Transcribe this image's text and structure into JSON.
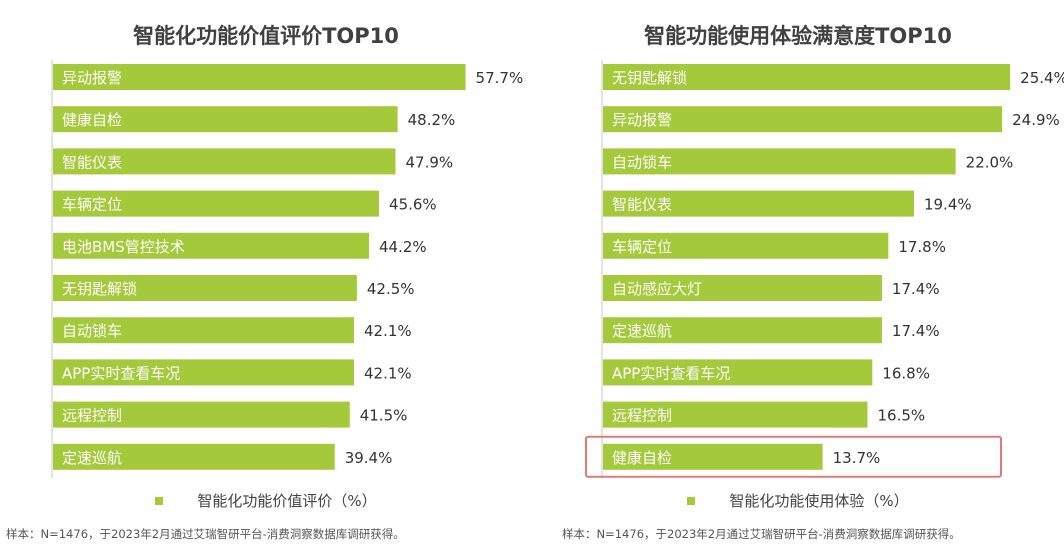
{
  "colors": {
    "bar": "#a4c93a",
    "bar_label": "#ffffff",
    "value_label": "#333333",
    "axis": "#c8c8c8",
    "highlight": "#e07a7a"
  },
  "chart_data": [
    {
      "type": "bar",
      "orientation": "horizontal",
      "title": "智能化功能价值评价TOP10",
      "categories": [
        "异动报警",
        "健康自检",
        "智能仪表",
        "车辆定位",
        "电池BMS管控技术",
        "无钥匙解锁",
        "自动锁车",
        "APP实时查看车况",
        "远程控制",
        "定速巡航"
      ],
      "values": [
        57.7,
        48.2,
        47.9,
        45.6,
        44.2,
        42.5,
        42.1,
        42.1,
        41.5,
        39.4
      ],
      "value_labels": [
        "57.7%",
        "48.2%",
        "47.9%",
        "45.6%",
        "44.2%",
        "42.5%",
        "42.1%",
        "42.1%",
        "41.5%",
        "39.4%"
      ],
      "series": [
        {
          "name": "智能化功能价值评价（%）"
        }
      ],
      "xlim": [
        0,
        60
      ]
    },
    {
      "type": "bar",
      "orientation": "horizontal",
      "title": "智能功能使用体验满意度TOP10",
      "categories": [
        "无钥匙解锁",
        "异动报警",
        "自动锁车",
        "智能仪表",
        "车辆定位",
        "自动感应大灯",
        "定速巡航",
        "APP实时查看车况",
        "远程控制",
        "健康自检"
      ],
      "values": [
        25.4,
        24.9,
        22.0,
        19.4,
        17.8,
        17.4,
        17.4,
        16.8,
        16.5,
        13.7
      ],
      "value_labels": [
        "25.4%",
        "24.9%",
        "22.0%",
        "19.4%",
        "17.8%",
        "17.4%",
        "17.4%",
        "16.8%",
        "16.5%",
        "13.7%"
      ],
      "series": [
        {
          "name": "智能化功能使用体验（%）"
        }
      ],
      "highlighted_category": "健康自检",
      "xlim": [
        0,
        27
      ]
    }
  ],
  "footnotes": {
    "left": "样本：N=1476，于2023年2月通过艾瑞智研平台-消费洞察数据库调研获得。",
    "right": "样本：N=1476，于2023年2月通过艾瑞智研平台-消费洞察数据库调研获得。"
  }
}
